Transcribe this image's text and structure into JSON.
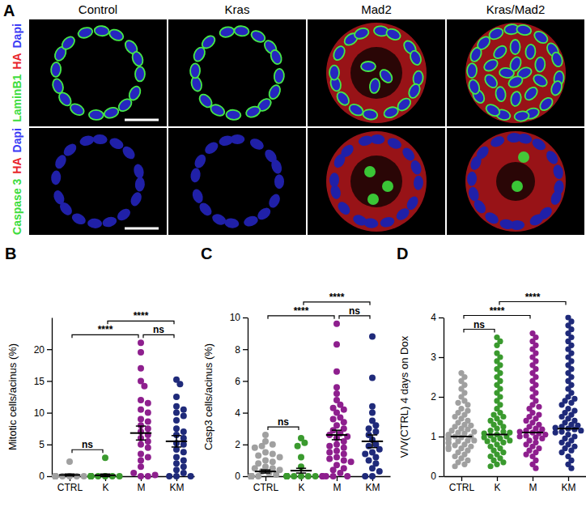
{
  "panel_a": {
    "label": "A",
    "columns": [
      "Control",
      "Kras",
      "Mad2",
      "Kras/Mad2"
    ],
    "rows": [
      {
        "channels": [
          {
            "text": "LaminB1",
            "color": "#3ddc3d"
          },
          {
            "text": "HA",
            "color": "#e8262a"
          },
          {
            "text": "Dapi",
            "color": "#3b3bf5"
          }
        ]
      },
      {
        "channels": [
          {
            "text": "Caspase 3",
            "color": "#3ddc3d"
          },
          {
            "text": "HA",
            "color": "#e8262a"
          },
          {
            "text": "Dapi",
            "color": "#3b3bf5"
          }
        ]
      }
    ]
  },
  "chart_data": [
    {
      "type": "dot",
      "panel_label": "B",
      "y_label": "Mitotic cells/acinus (%)",
      "categories": [
        "CTRL",
        "K",
        "M",
        "KM"
      ],
      "colors": [
        "#a0a0a0",
        "#3a9a2e",
        "#8e1f8e",
        "#1f2a7a"
      ],
      "points": [
        [
          0,
          0,
          0,
          0,
          0,
          0,
          0,
          0,
          0,
          0,
          0,
          0,
          0,
          0,
          2.3
        ],
        [
          0,
          0,
          0,
          0,
          0,
          0,
          0,
          0,
          0,
          0,
          0,
          0,
          2.9
        ],
        [
          21,
          19.5,
          17,
          15,
          14.2,
          12,
          11.5,
          10.5,
          10,
          9,
          8.6,
          8,
          7.5,
          7,
          6.5,
          6,
          5.5,
          5,
          4.5,
          3.5,
          3,
          2.5,
          1.5,
          0,
          0,
          0.5,
          0.2
        ],
        [
          15.2,
          14.5,
          12.5,
          11,
          10.5,
          10,
          9.5,
          8.8,
          7.5,
          7,
          6.5,
          6,
          5.2,
          5,
          4.2,
          3.8,
          3,
          2.5,
          2,
          1.5,
          1,
          0.5,
          0,
          0,
          0
        ]
      ],
      "mean": [
        0.2,
        0.15,
        6.8,
        5.5
      ],
      "sem": [
        0.15,
        0.2,
        1.1,
        0.9
      ],
      "ylim": [
        0,
        25
      ],
      "yticks": [
        0,
        5,
        10,
        15,
        20
      ],
      "comparisons": [
        {
          "pair": [
            "CTRL",
            "K"
          ],
          "label": "ns"
        },
        {
          "pair": [
            "M",
            "KM"
          ],
          "label": "ns"
        },
        {
          "pair": [
            "CTRL",
            "M"
          ],
          "label": "****"
        },
        {
          "pair": [
            "K",
            "KM"
          ],
          "label": "****"
        }
      ]
    },
    {
      "type": "dot",
      "panel_label": "C",
      "y_label": "Casp3 cells/acinus (%)",
      "categories": [
        "CTRL",
        "K",
        "M",
        "KM"
      ],
      "colors": [
        "#a0a0a0",
        "#3a9a2e",
        "#8e1f8e",
        "#1f2a7a"
      ],
      "points": [
        [
          2.6,
          2.2,
          2,
          1.9,
          1.8,
          1.5,
          1.4,
          1.3,
          1.2,
          1.0,
          0.9,
          0.8,
          0.6,
          0.5,
          0.5,
          0.4,
          0.3,
          0.2,
          0.1,
          0,
          0,
          0,
          0,
          0,
          0,
          0,
          0,
          0,
          0,
          0,
          0,
          0,
          0,
          0,
          0,
          0,
          0,
          0,
          0,
          0,
          0
        ],
        [
          2.4,
          2.1,
          1.9,
          1.2,
          0.6,
          0,
          0,
          0,
          0,
          0,
          0,
          0,
          0,
          0,
          0,
          0
        ],
        [
          9.6,
          8.3,
          6.6,
          5.6,
          5.2,
          4.8,
          4.5,
          4.3,
          4.2,
          4,
          3.7,
          3.6,
          3.4,
          3.2,
          3,
          2.9,
          2.7,
          2.6,
          2.5,
          2.4,
          2.2,
          2,
          1.9,
          1.8,
          1.6,
          1.5,
          1.4,
          1.2,
          1.1,
          1,
          0.9,
          0.7,
          0.5,
          0.4,
          0.2,
          0,
          0,
          0,
          0,
          0
        ],
        [
          8.8,
          6.2,
          4.4,
          4,
          3.5,
          3.2,
          3,
          2.8,
          2.6,
          2.3,
          2,
          1.9,
          1.7,
          1.5,
          1.4,
          1.2,
          1,
          0.8,
          0.5,
          0.3,
          0,
          0
        ]
      ],
      "mean": [
        0.3,
        0.35,
        2.6,
        2.2
      ],
      "sem": [
        0.1,
        0.15,
        0.3,
        0.4
      ],
      "ylim": [
        0,
        10
      ],
      "yticks": [
        0,
        2,
        4,
        6,
        8,
        10
      ],
      "comparisons": [
        {
          "pair": [
            "CTRL",
            "K"
          ],
          "label": "ns"
        },
        {
          "pair": [
            "M",
            "KM"
          ],
          "label": "ns"
        },
        {
          "pair": [
            "CTRL",
            "M"
          ],
          "label": "****"
        },
        {
          "pair": [
            "K",
            "KM"
          ],
          "label": "****"
        }
      ]
    },
    {
      "type": "dot",
      "panel_label": "D",
      "y_label": "V/V(CTRL) 4 days on Dox",
      "categories": [
        "CTRL",
        "K",
        "M",
        "KM"
      ],
      "colors": [
        "#a0a0a0",
        "#3a9a2e",
        "#8e1f8e",
        "#1f2a7a"
      ],
      "points": [
        [
          2.6,
          2.5,
          2.4,
          2.3,
          2.2,
          2.1,
          2.0,
          1.9,
          1.85,
          1.8,
          1.7,
          1.65,
          1.6,
          1.55,
          1.5,
          1.45,
          1.4,
          1.35,
          1.3,
          1.28,
          1.25,
          1.2,
          1.18,
          1.15,
          1.12,
          1.1,
          1.08,
          1.05,
          1.03,
          1.0,
          1.0,
          0.98,
          0.97,
          0.95,
          0.93,
          0.9,
          0.9,
          0.88,
          0.85,
          0.83,
          0.8,
          0.78,
          0.75,
          0.72,
          0.7,
          0.68,
          0.65,
          0.6,
          0.55,
          0.5,
          0.45,
          0.4,
          0.35,
          0.3,
          0.25
        ],
        [
          3.5,
          3.4,
          3.3,
          3.1,
          3.0,
          2.9,
          2.8,
          2.7,
          2.6,
          2.5,
          2.4,
          2.3,
          2.2,
          2.1,
          2.0,
          1.9,
          1.8,
          1.7,
          1.6,
          1.55,
          1.5,
          1.45,
          1.4,
          1.35,
          1.3,
          1.25,
          1.2,
          1.15,
          1.12,
          1.1,
          1.08,
          1.05,
          1.02,
          1.0,
          0.98,
          0.95,
          0.92,
          0.9,
          0.88,
          0.85,
          0.8,
          0.75,
          0.7,
          0.65,
          0.6,
          0.55,
          0.5,
          0.45,
          0.4,
          0.35,
          0.3,
          0.25
        ],
        [
          3.6,
          3.5,
          3.4,
          3.3,
          3.2,
          3.1,
          3.0,
          2.9,
          2.8,
          2.7,
          2.6,
          2.5,
          2.4,
          2.3,
          2.2,
          2.1,
          2.0,
          1.9,
          1.8,
          1.75,
          1.7,
          1.6,
          1.55,
          1.5,
          1.45,
          1.4,
          1.35,
          1.3,
          1.25,
          1.2,
          1.18,
          1.15,
          1.12,
          1.1,
          1.08,
          1.05,
          1.02,
          1.0,
          0.98,
          0.95,
          0.9,
          0.85,
          0.8,
          0.75,
          0.7,
          0.65,
          0.6,
          0.55,
          0.5,
          0.4,
          0.3,
          0.2
        ],
        [
          4.0,
          3.9,
          3.8,
          3.7,
          3.6,
          3.5,
          3.4,
          3.3,
          3.2,
          3.1,
          3.0,
          2.9,
          2.8,
          2.7,
          2.6,
          2.5,
          2.4,
          2.3,
          2.2,
          2.1,
          2.0,
          1.95,
          1.9,
          1.85,
          1.8,
          1.7,
          1.65,
          1.6,
          1.55,
          1.5,
          1.45,
          1.4,
          1.35,
          1.3,
          1.28,
          1.25,
          1.22,
          1.2,
          1.18,
          1.15,
          1.12,
          1.1,
          1.05,
          1.0,
          0.95,
          0.9,
          0.85,
          0.8,
          0.75,
          0.7,
          0.65,
          0.6,
          0.5,
          0.4,
          0.3,
          0.2
        ]
      ],
      "mean": [
        1.0,
        1.05,
        1.1,
        1.2
      ],
      "ylim": [
        0,
        4
      ],
      "yticks": [
        0,
        1,
        2,
        3,
        4
      ],
      "comparisons": [
        {
          "pair": [
            "CTRL",
            "K"
          ],
          "label": "ns"
        },
        {
          "pair": [
            "CTRL",
            "M"
          ],
          "label": "****"
        },
        {
          "pair": [
            "K",
            "KM"
          ],
          "label": "****"
        }
      ]
    }
  ]
}
